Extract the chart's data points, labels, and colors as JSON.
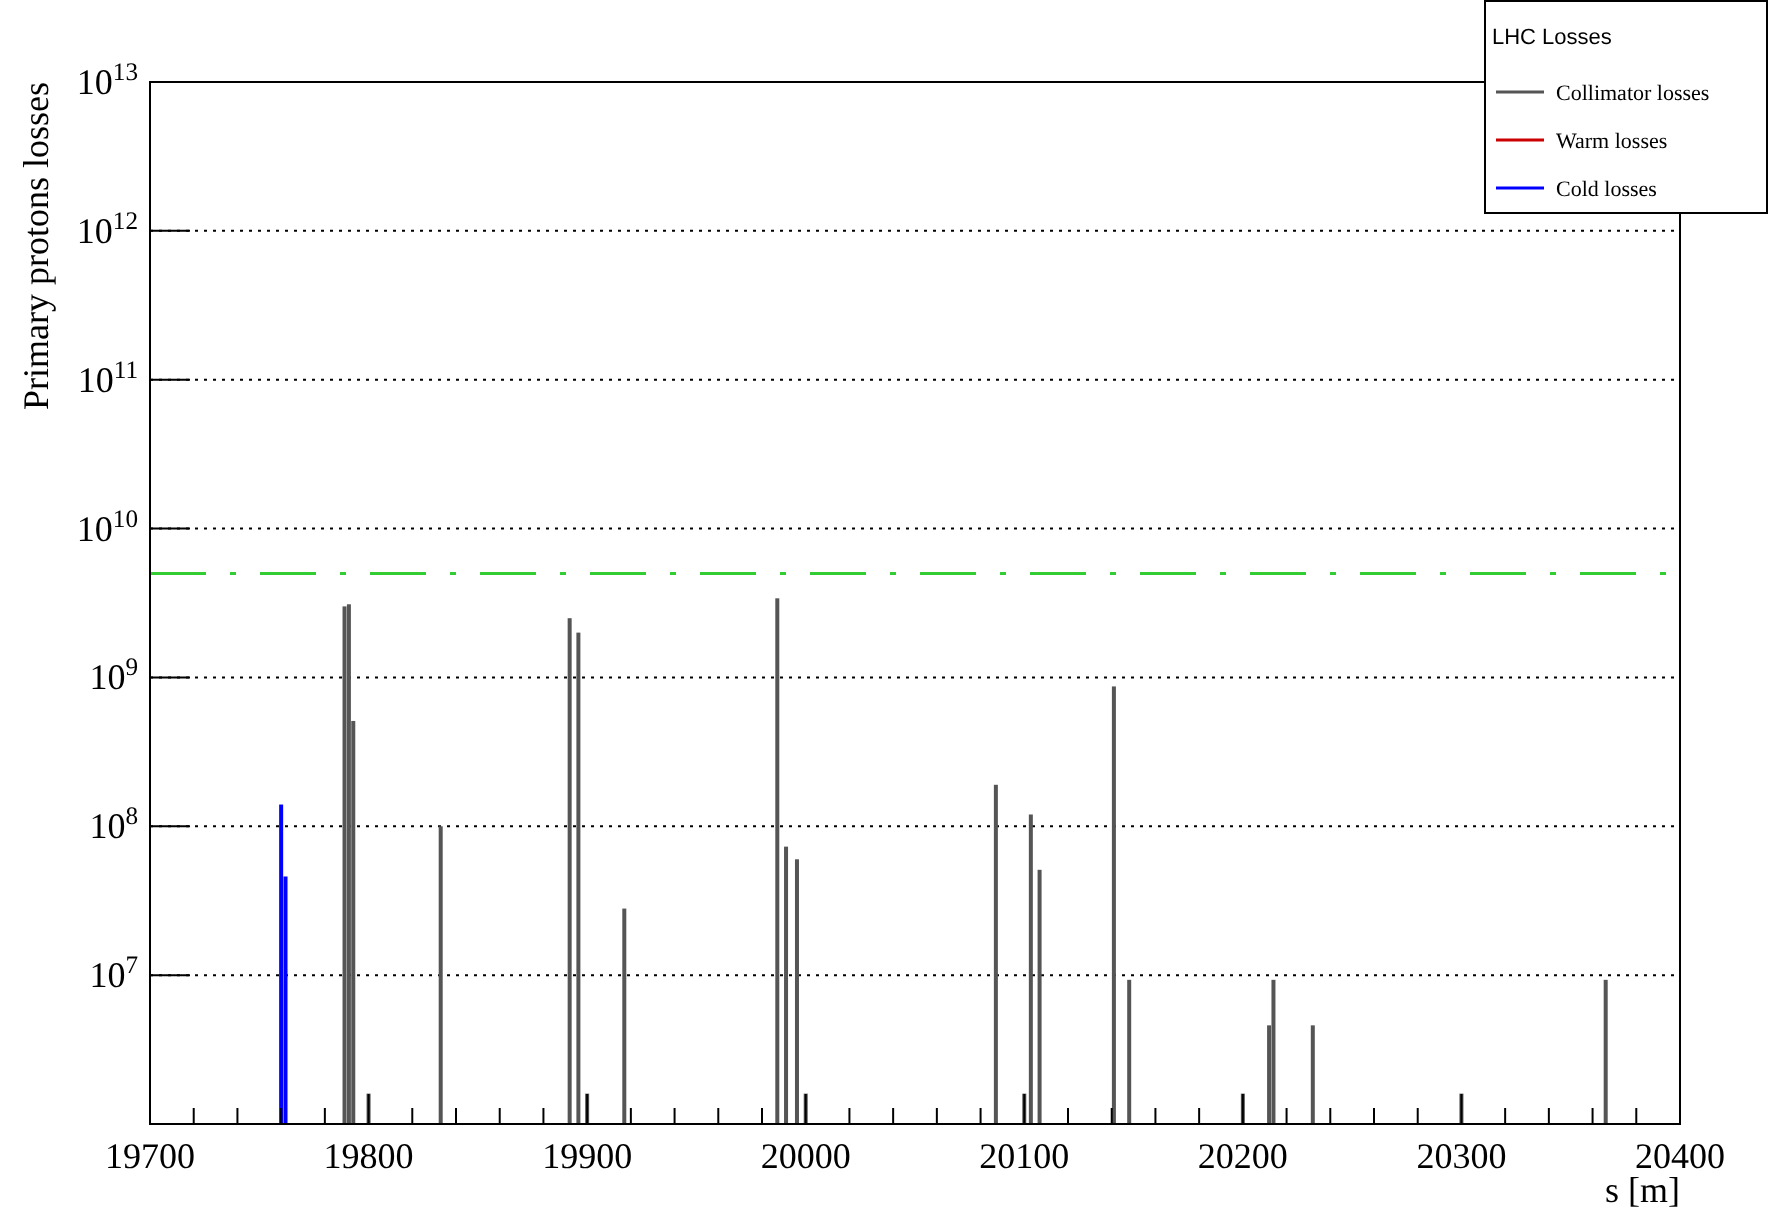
{
  "chart_data": {
    "type": "bar",
    "xlabel": "s [m]",
    "ylabel": "Primary protons losses",
    "legend_title": "LHC Losses",
    "legend": "top right",
    "log": "y",
    "grid": "y",
    "xlim": [
      19700,
      20400
    ],
    "xticks": [
      19700,
      {
        "value": 19720,
        "label": null
      },
      {
        "value": 19740,
        "label": null
      },
      {
        "value": 19760,
        "label": null
      },
      {
        "value": 19780,
        "label": null
      },
      19800,
      {
        "value": 19820,
        "label": null
      },
      {
        "value": 19840,
        "label": null
      },
      {
        "value": 19860,
        "label": null
      },
      {
        "value": 19880,
        "label": null
      },
      19900,
      {
        "value": 19920,
        "label": null
      },
      {
        "value": 19940,
        "label": null
      },
      {
        "value": 19960,
        "label": null
      },
      {
        "value": 19980,
        "label": null
      },
      20000,
      {
        "value": 20020,
        "label": null
      },
      {
        "value": 20040,
        "label": null
      },
      {
        "value": 20060,
        "label": null
      },
      {
        "value": 20080,
        "label": null
      },
      20100,
      {
        "value": 20120,
        "label": null
      },
      {
        "value": 20140,
        "label": null
      },
      {
        "value": 20160,
        "label": null
      },
      {
        "value": 20180,
        "label": null
      },
      20200,
      {
        "value": 20220,
        "label": null
      },
      {
        "value": 20240,
        "label": null
      },
      {
        "value": 20260,
        "label": null
      },
      {
        "value": 20280,
        "label": null
      },
      20300,
      {
        "value": 20320,
        "label": null
      },
      {
        "value": 20340,
        "label": null
      },
      {
        "value": 20360,
        "label": null
      },
      {
        "value": 20380,
        "label": null
      },
      20400
    ],
    "ylim": [
      1000000,
      10000000000000
    ],
    "yticks": [
      {
        "value": 10000000,
        "label": "10$^{7}$"
      },
      {
        "value": 100000000,
        "label": "10$^{8}$"
      },
      {
        "value": 1000000000,
        "label": "10$^{9}$"
      },
      {
        "value": 10000000000,
        "label": "10$^{10}$"
      },
      {
        "value": 100000000000,
        "label": "10$^{11}$"
      },
      {
        "value": 1000000000000,
        "label": "10$^{12}$"
      },
      {
        "value": 10000000000000,
        "label": "10$^{13}$"
      }
    ],
    "ref_lines": [
      {
        "axis": "y",
        "value": 5000000000,
        "color": "#33cc33",
        "line_style": "dashed"
      }
    ],
    "series": [
      {
        "name": "Collimator losses",
        "color": "#555555",
        "x": [
          19789,
          19791,
          19793,
          19800,
          19833,
          19892,
          19896,
          19900,
          19917,
          19987,
          19991,
          19996,
          20000,
          20087,
          20100,
          20103,
          20107,
          20141,
          20148,
          20200,
          20212,
          20214,
          20232,
          20300,
          20366
        ],
        "values": [
          3000000000,
          3100000000,
          510000000,
          1600000,
          100000000,
          2500000000,
          2000000000,
          1600000,
          28000000,
          3400000000,
          73000000,
          60000000,
          1600000,
          190000000,
          1600000,
          120000000,
          51000000,
          870000000,
          9300000,
          1600000,
          4600000,
          9300000,
          4600000,
          1600000,
          9300000
        ]
      },
      {
        "name": "Warm losses",
        "color": "#cc0000"
      },
      {
        "name": "Cold losses",
        "color": "#0000ff",
        "x": [
          19760,
          19762
        ],
        "values": [
          140000000,
          46000000
        ]
      }
    ]
  }
}
